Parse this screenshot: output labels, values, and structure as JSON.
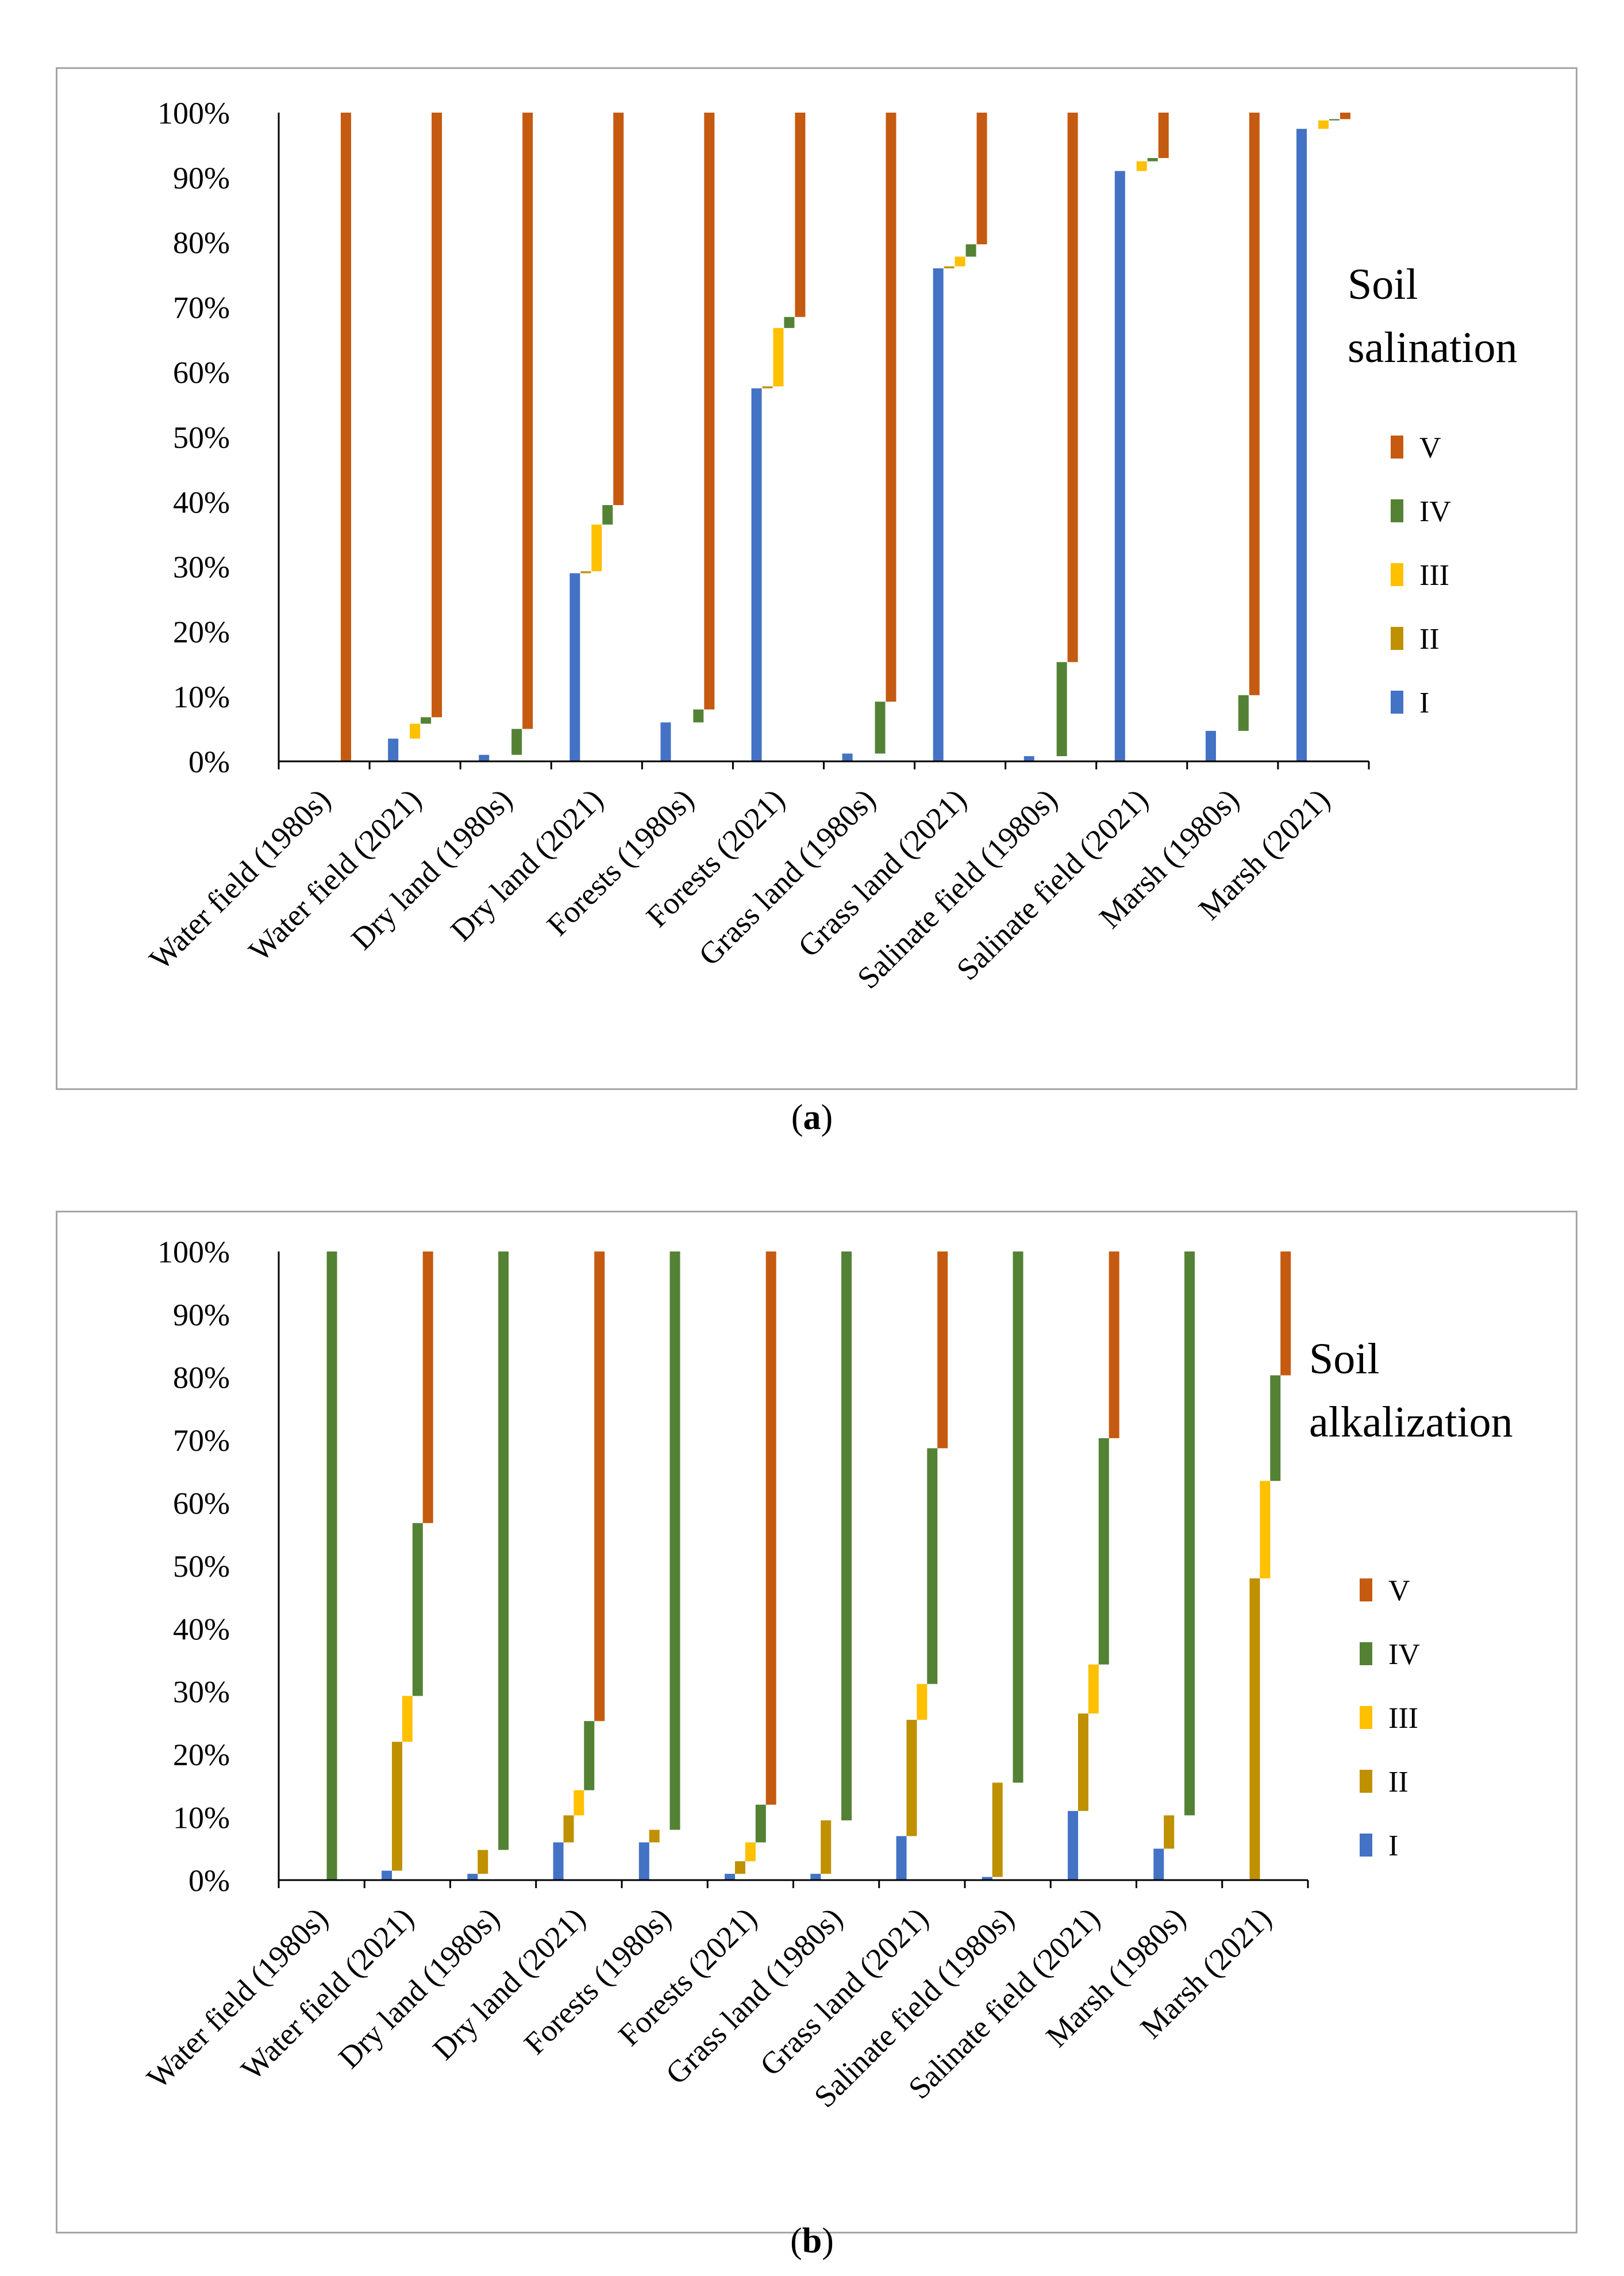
{
  "legend_labels": [
    "V",
    "IV",
    "III",
    "II",
    "I"
  ],
  "classes": [
    "I",
    "II",
    "III",
    "IV",
    "V"
  ],
  "colors": {
    "I": "#4472c4",
    "II": "#bf9000",
    "III": "#ffc000",
    "IV": "#548235",
    "V": "#c55a11"
  },
  "figures": [
    {
      "id": "a",
      "caption_letter": "a",
      "title_line1": "Soil",
      "title_line2": "salination",
      "chart_data": {
        "type": "bar",
        "subtype": "stepped-cumulative",
        "title": "Soil salination",
        "ylim": [
          0,
          100
        ],
        "yticks": [
          "0%",
          "10%",
          "20%",
          "30%",
          "40%",
          "50%",
          "60%",
          "70%",
          "80%",
          "90%",
          "100%"
        ],
        "categories": [
          "Water field (1980s)",
          "Water field (2021)",
          "Dry land (1980s)",
          "Dry land (2021)",
          "Forests (1980s)",
          "Forests (2021)",
          "Grass land (1980s)",
          "Grass land (2021)",
          "Salinate field (1980s)",
          "Salinate field (2021)",
          "Marsh (1980s)",
          "Marsh (2021)"
        ],
        "series": [
          {
            "name": "I",
            "values": [
              0,
              3.5,
              1,
              29,
              6,
              57.5,
              1.2,
              76,
              0.8,
              91,
              4.7,
              97.5
            ]
          },
          {
            "name": "II",
            "values": [
              0,
              0,
              0,
              0.3,
              0,
              0.3,
              0,
              0.3,
              0,
              0,
              0,
              0
            ]
          },
          {
            "name": "III",
            "values": [
              0,
              2.3,
              0,
              7.2,
              0,
              9,
              0,
              1.5,
              0,
              1.5,
              0,
              1.3
            ]
          },
          {
            "name": "IV",
            "values": [
              0,
              1,
              4,
              3,
              2,
              1.7,
              8,
              1.9,
              14.5,
              0.5,
              5.5,
              0.2
            ]
          },
          {
            "name": "V",
            "values": [
              100,
              93.2,
              95,
              60.5,
              92,
              31.5,
              90.8,
              20.3,
              84.7,
              7,
              89.8,
              1
            ]
          }
        ]
      }
    },
    {
      "id": "b",
      "caption_letter": "b",
      "title_line1": "Soil",
      "title_line2": "alkalization",
      "chart_data": {
        "type": "bar",
        "subtype": "stepped-cumulative",
        "title": "Soil alkalization",
        "ylim": [
          0,
          100
        ],
        "yticks": [
          "0%",
          "10%",
          "20%",
          "30%",
          "40%",
          "50%",
          "60%",
          "70%",
          "80%",
          "90%",
          "100%"
        ],
        "categories": [
          "Water field (1980s)",
          "Water field (2021)",
          "Dry land (1980s)",
          "Dry land (2021)",
          "Forests (1980s)",
          "Forests (2021)",
          "Grass land (1980s)",
          "Grass land (2021)",
          "Salinate field (1980s)",
          "Salinate field (2021)",
          "Marsh (1980s)",
          "Marsh (2021)"
        ],
        "series": [
          {
            "name": "I",
            "values": [
              0,
              1.5,
              1,
              6,
              6,
              1,
              1,
              7,
              0.5,
              11,
              5,
              0
            ]
          },
          {
            "name": "II",
            "values": [
              0,
              20.5,
              3.8,
              4.3,
              2,
              2,
              8.5,
              18.5,
              15,
              15.5,
              5.3,
              48
            ]
          },
          {
            "name": "III",
            "values": [
              0,
              7.3,
              0,
              4,
              0,
              3,
              0,
              5.7,
              0,
              7.8,
              0,
              15.5
            ]
          },
          {
            "name": "IV",
            "values": [
              100,
              27.5,
              95.2,
              11,
              92,
              6,
              90.5,
              37.5,
              84.5,
              36,
              89.7,
              16.8
            ]
          },
          {
            "name": "V",
            "values": [
              0,
              43.2,
              0,
              74.7,
              0,
              88,
              0,
              31.3,
              0,
              29.7,
              0,
              19.7
            ]
          }
        ]
      }
    }
  ]
}
